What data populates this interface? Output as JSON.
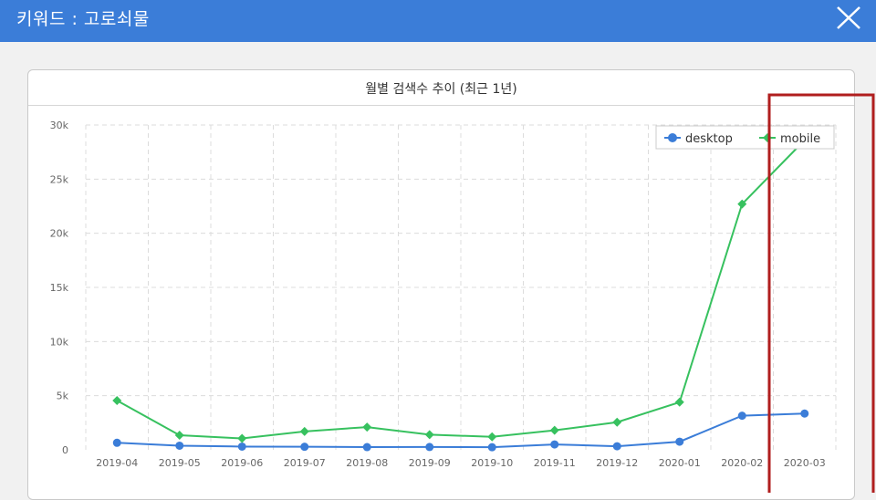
{
  "header": {
    "title": "키워드 : 고로쇠물",
    "close_icon": "close-icon",
    "background_color": "#3b7dd8"
  },
  "panel": {
    "title": "월별 검색수 추이 (최근 1년)"
  },
  "highlight_box": {
    "color": "#b01e1e"
  },
  "chart_data": {
    "type": "line",
    "title": "월별 검색수 추이 (최근 1년)",
    "categories": [
      "2019-04",
      "2019-05",
      "2019-06",
      "2019-07",
      "2019-08",
      "2019-09",
      "2019-10",
      "2019-11",
      "2019-12",
      "2020-01",
      "2020-02",
      "2020-03"
    ],
    "series": [
      {
        "name": "desktop",
        "color": "#3b7dd8",
        "marker": "circle",
        "values": [
          650,
          380,
          300,
          280,
          250,
          260,
          240,
          500,
          330,
          750,
          3150,
          3350
        ]
      },
      {
        "name": "mobile",
        "color": "#37c15f",
        "marker": "diamond",
        "values": [
          4550,
          1350,
          1050,
          1700,
          2100,
          1400,
          1200,
          1800,
          2550,
          4400,
          22700,
          28600
        ]
      }
    ],
    "y_ticks": [
      "0",
      "5k",
      "10k",
      "15k",
      "20k",
      "25k",
      "30k"
    ],
    "ylim": [
      0,
      30000
    ],
    "grid": true,
    "legend_position": "top-right"
  }
}
